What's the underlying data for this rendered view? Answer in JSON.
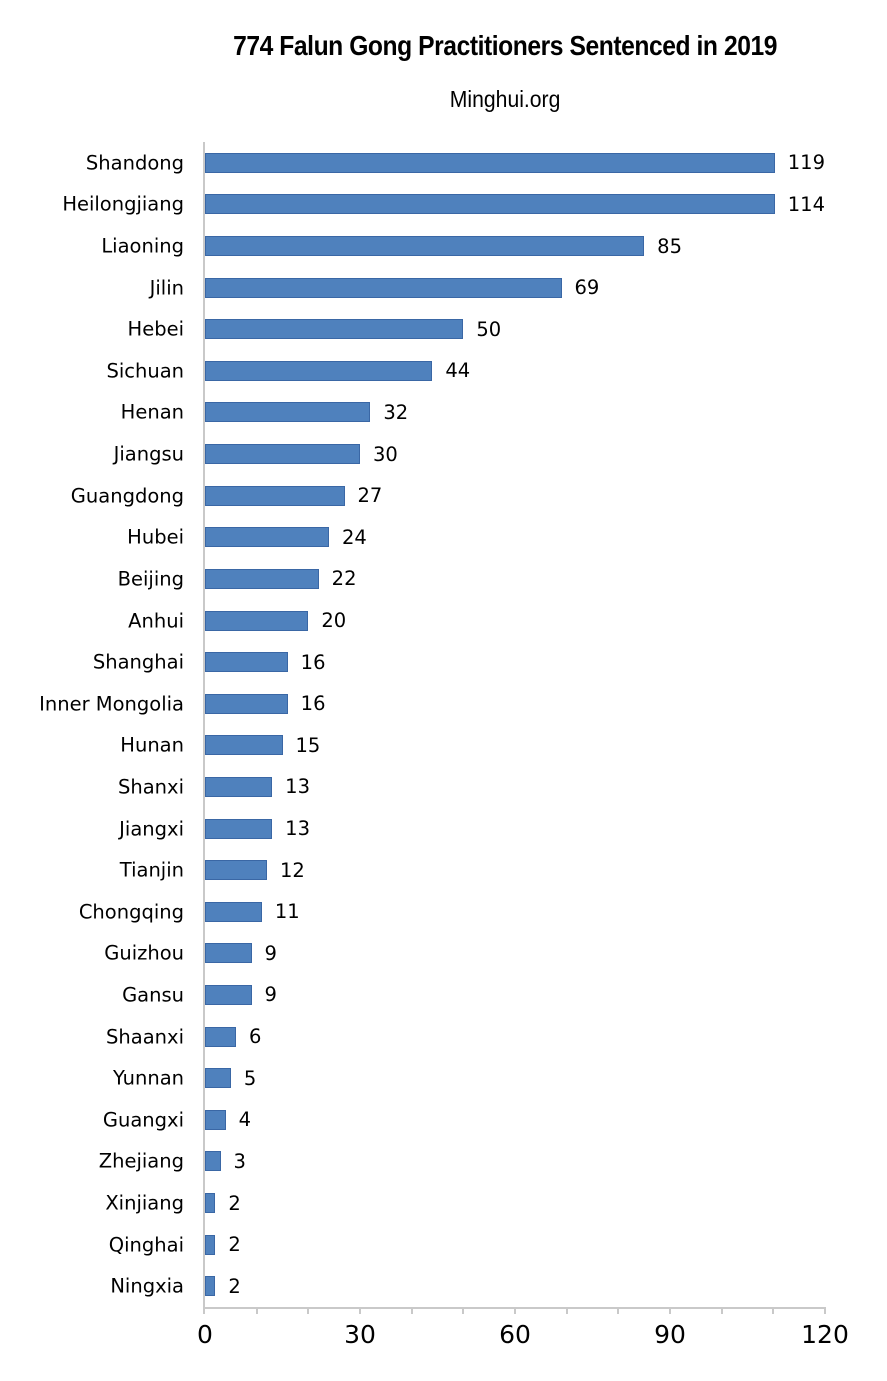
{
  "title": "774 Falun Gong Practitioners Sentenced in 2019",
  "subtitle": "Minghui.org",
  "colors": {
    "bar_fill": "#4f81bd",
    "bar_border": "#3a67a5",
    "axis": "#c9c9c9",
    "text": "#000000",
    "background": "#ffffff"
  },
  "chart_data": {
    "type": "bar",
    "orientation": "horizontal",
    "title": "774 Falun Gong Practitioners Sentenced in 2019",
    "subtitle": "Minghui.org",
    "categories": [
      "Shandong",
      "Heilongjiang",
      "Liaoning",
      "Jilin",
      "Hebei",
      "Sichuan",
      "Henan",
      "Jiangsu",
      "Guangdong",
      "Hubei",
      "Beijing",
      "Anhui",
      "Shanghai",
      "Inner Mongolia",
      "Hunan",
      "Shanxi",
      "Jiangxi",
      "Tianjin",
      "Chongqing",
      "Guizhou",
      "Gansu",
      "Shaanxi",
      "Yunnan",
      "Guangxi",
      "Zhejiang",
      "Xinjiang",
      "Qinghai",
      "Ningxia"
    ],
    "values": [
      119,
      114,
      85,
      69,
      50,
      44,
      32,
      30,
      27,
      24,
      22,
      20,
      16,
      16,
      15,
      13,
      13,
      12,
      11,
      9,
      9,
      6,
      5,
      4,
      3,
      2,
      2,
      2
    ],
    "total": 774,
    "xlabel": "",
    "ylabel": "",
    "xlim": [
      0,
      120
    ],
    "x_major_ticks": [
      0,
      30,
      60,
      90,
      120
    ],
    "x_minor_tick_step": 10,
    "grid": false,
    "value_labels": true,
    "legend": "none"
  }
}
